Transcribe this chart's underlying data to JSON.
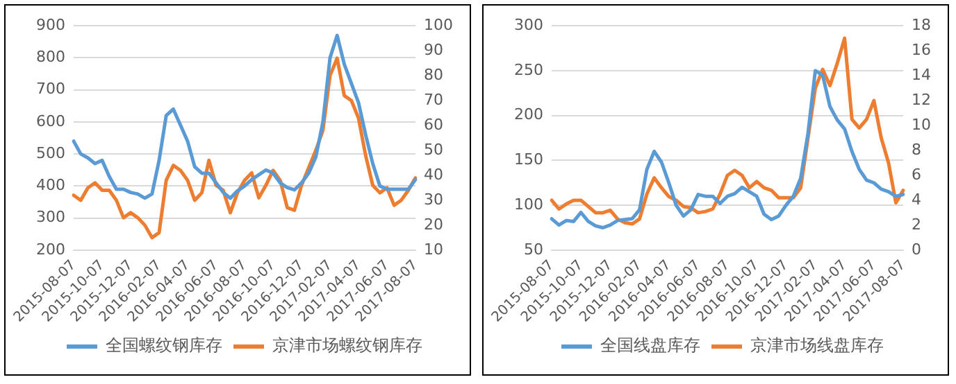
{
  "chart_data": [
    {
      "type": "line",
      "categories": [
        "2015-08-07",
        null,
        null,
        null,
        "2015-10-07",
        null,
        null,
        null,
        "2015-12-07",
        null,
        null,
        null,
        "2016-02-07",
        null,
        null,
        null,
        "2016-04-07",
        null,
        null,
        null,
        "2016-06-07",
        null,
        null,
        null,
        "2016-08-07",
        null,
        null,
        null,
        "2016-10-07",
        null,
        null,
        null,
        "2016-12-07",
        null,
        null,
        null,
        "2017-02-07",
        null,
        null,
        null,
        "2017-04-07",
        null,
        null,
        null,
        "2017-06-07",
        null,
        null,
        null,
        "2017-08-07"
      ],
      "series": [
        {
          "name": "全国螺纹钢库存",
          "color": "#5b9bd5",
          "values": [
            540,
            500,
            488,
            470,
            480,
            430,
            390,
            390,
            380,
            375,
            362,
            375,
            480,
            620,
            640,
            590,
            540,
            460,
            440,
            440,
            410,
            380,
            362,
            385,
            400,
            420,
            435,
            450,
            440,
            410,
            395,
            388,
            410,
            440,
            490,
            600,
            800,
            870,
            780,
            720,
            660,
            560,
            470,
            400,
            390,
            390,
            390,
            390,
            420
          ]
        },
        {
          "name": "京津市场螺纹钢库存",
          "color": "#ed7d31",
          "axis": "y2",
          "values": [
            32,
            30,
            35,
            37,
            34,
            34,
            30,
            23,
            25,
            23,
            20,
            15,
            17,
            38,
            44,
            42,
            38,
            30,
            33,
            46,
            36,
            34,
            25,
            33,
            38,
            41,
            31,
            36,
            42,
            38,
            27,
            26,
            36,
            43,
            50,
            58,
            80,
            87,
            72,
            70,
            63,
            48,
            36,
            33,
            35,
            28,
            30,
            34,
            39
          ]
        }
      ],
      "ylim": [
        200,
        900
      ],
      "yticks": [
        200,
        300,
        400,
        500,
        600,
        700,
        800,
        900
      ],
      "y2lim": [
        10,
        100
      ],
      "y2ticks": [
        10,
        20,
        30,
        40,
        50,
        60,
        70,
        80,
        90,
        100
      ],
      "grid": "y",
      "legend": "bottom",
      "marker": "none",
      "line_style": "solid"
    },
    {
      "type": "line",
      "categories": [
        "2015-08-07",
        null,
        null,
        null,
        "2015-10-07",
        null,
        null,
        null,
        "2015-12-07",
        null,
        null,
        null,
        "2016-02-07",
        null,
        null,
        null,
        "2016-04-07",
        null,
        null,
        null,
        "2016-06-07",
        null,
        null,
        null,
        "2016-08-07",
        null,
        null,
        null,
        "2016-10-07",
        null,
        null,
        null,
        "2016-12-07",
        null,
        null,
        null,
        "2017-02-07",
        null,
        null,
        null,
        "2017-04-07",
        null,
        null,
        null,
        "2017-06-07",
        null,
        null,
        null,
        "2017-08-07"
      ],
      "series": [
        {
          "name": "全国线盘库存",
          "color": "#5b9bd5",
          "values": [
            85,
            78,
            83,
            82,
            92,
            82,
            77,
            75,
            78,
            83,
            84,
            85,
            95,
            140,
            160,
            148,
            125,
            100,
            88,
            95,
            112,
            110,
            110,
            102,
            110,
            113,
            120,
            115,
            110,
            90,
            84,
            88,
            100,
            110,
            130,
            180,
            250,
            245,
            210,
            195,
            185,
            160,
            140,
            128,
            125,
            118,
            115,
            110,
            112
          ]
        },
        {
          "name": "京津市场线盘库存",
          "color": "#ed7d31",
          "axis": "y2",
          "values": [
            4,
            3.3,
            3.7,
            4,
            4,
            3.5,
            3,
            3,
            3.2,
            2.5,
            2.2,
            2.1,
            2.5,
            4.5,
            5.8,
            5,
            4.3,
            4,
            3.5,
            3.4,
            3,
            3.1,
            3.3,
            4.5,
            6,
            6.4,
            6,
            5,
            5.5,
            5,
            4.8,
            4.2,
            4.2,
            4.2,
            5,
            9,
            13,
            14.5,
            13.2,
            15,
            17,
            10.5,
            9.8,
            10.5,
            12,
            9,
            7,
            3.8,
            4.8
          ]
        }
      ],
      "ylim": [
        50,
        300
      ],
      "yticks": [
        50,
        100,
        150,
        200,
        250,
        300
      ],
      "y2lim": [
        0,
        18
      ],
      "y2ticks": [
        0,
        2,
        4,
        6,
        8,
        10,
        12,
        14,
        16,
        18
      ],
      "grid": "y",
      "legend": "bottom",
      "marker": "none",
      "line_style": "solid"
    }
  ]
}
